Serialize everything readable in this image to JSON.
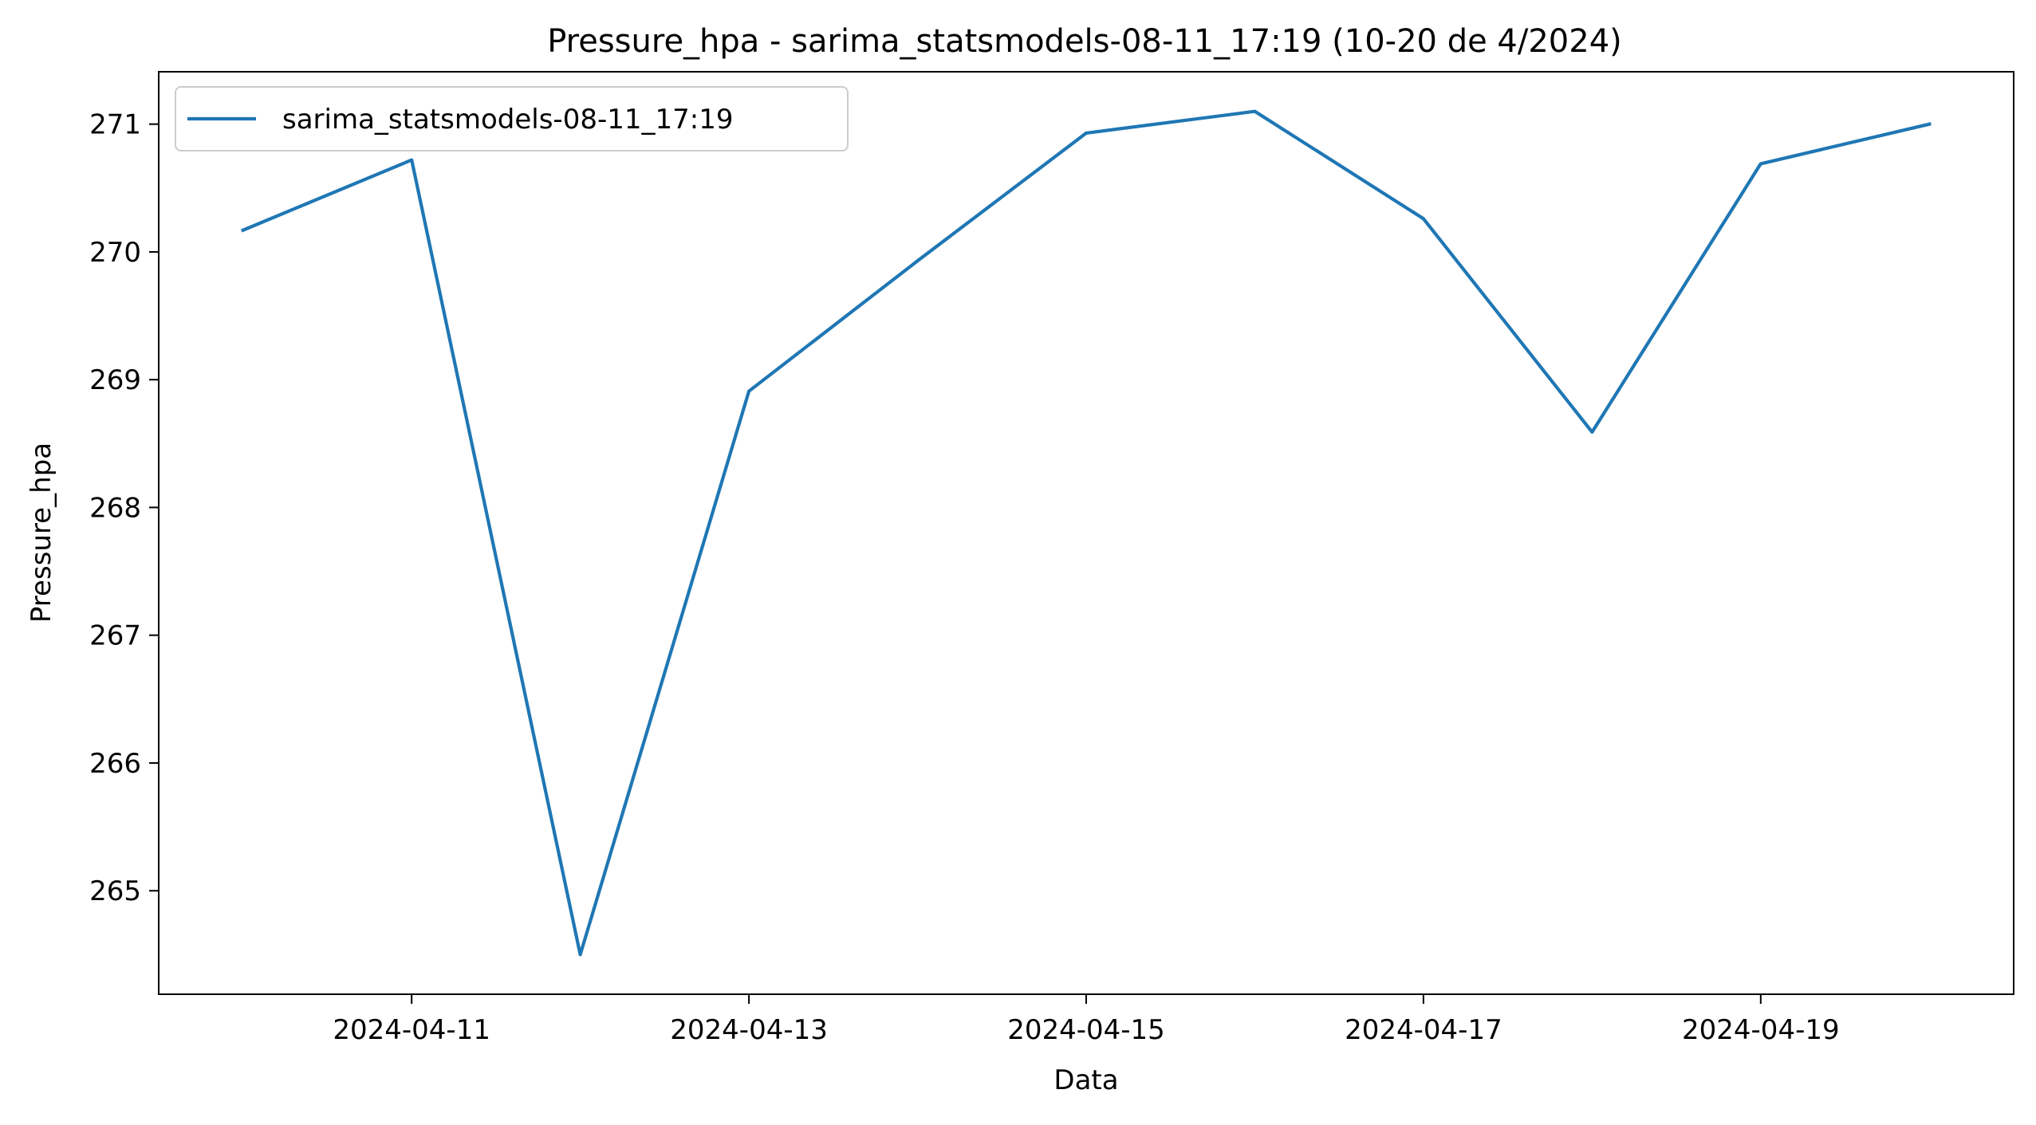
{
  "chart_data": {
    "type": "line",
    "title": "Pressure_hpa - sarima_statsmodels-08-11_17:19 (10-20 de 4/2024)",
    "xlabel": "Data",
    "ylabel": "Pressure_hpa",
    "x": [
      "2024-04-10",
      "2024-04-11",
      "2024-04-12",
      "2024-04-13",
      "2024-04-14",
      "2024-04-15",
      "2024-04-16",
      "2024-04-17",
      "2024-04-18",
      "2024-04-19",
      "2024-04-20"
    ],
    "series": [
      {
        "name": "sarima_statsmodels-08-11_17:19",
        "color": "#1f77b4",
        "values": [
          270.17,
          270.72,
          264.5,
          268.91,
          269.93,
          270.93,
          271.1,
          270.26,
          268.59,
          270.69,
          271.0
        ]
      }
    ],
    "xlim": [
      "2024-04-09T12:00",
      "2024-04-20T12:00"
    ],
    "ylim": [
      264.19,
      271.41
    ],
    "xticks": [
      "2024-04-11",
      "2024-04-13",
      "2024-04-15",
      "2024-04-17",
      "2024-04-19"
    ],
    "yticks": [
      265,
      266,
      267,
      268,
      269,
      270,
      271
    ],
    "grid": false,
    "legend_position": "top-left"
  }
}
